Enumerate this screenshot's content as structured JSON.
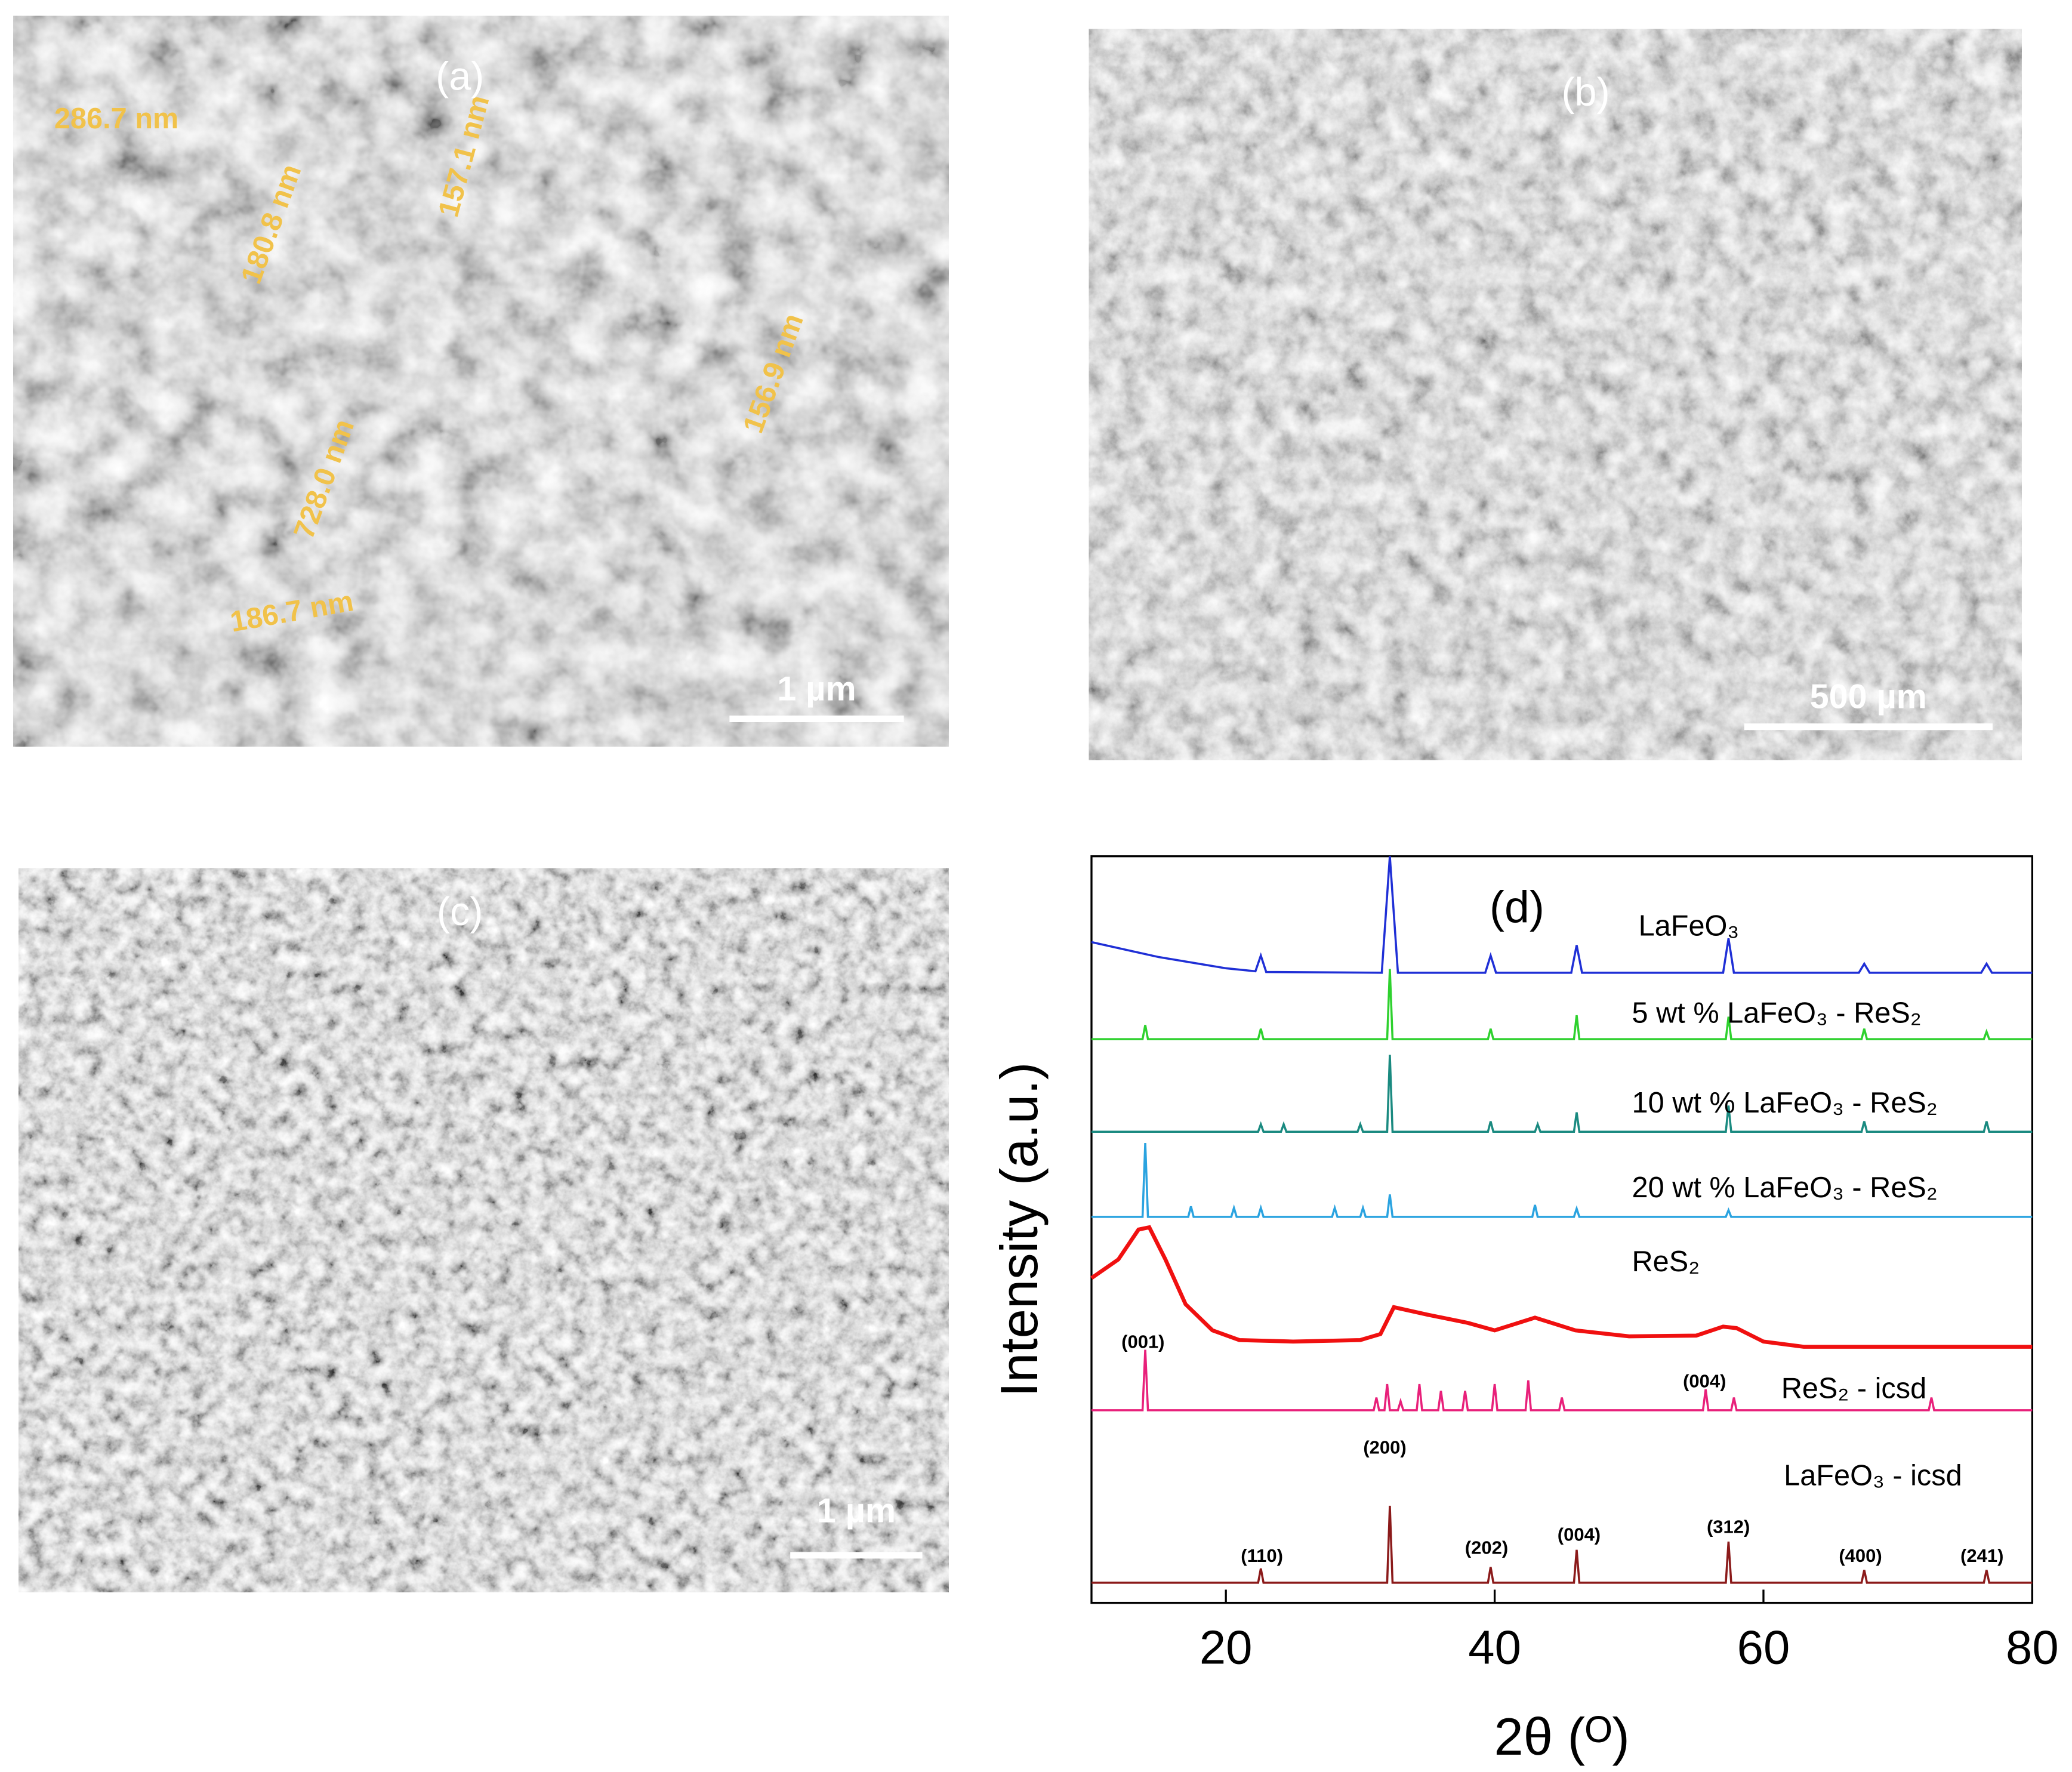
{
  "panels": [
    {
      "label": "(a)",
      "scale_bar": "1 µm",
      "measurements": [
        "286.7 nm",
        "157.1 nm",
        "180.8 nm",
        "156.9 nm",
        "728.0 nm",
        "186.7 nm"
      ]
    },
    {
      "label": "(b)",
      "scale_bar": "500 µm"
    },
    {
      "label": "(c)",
      "scale_bar": "1 µm"
    }
  ],
  "chart_data": {
    "type": "line",
    "panel_label": "(d)",
    "x_label": "2θ (ᴼ)",
    "y_label": "Intensity (a.u.)",
    "xlim": [
      10,
      80
    ],
    "xticks": [
      20,
      40,
      60,
      80
    ],
    "ylim": [
      0,
      100
    ],
    "series": [
      {
        "name": "LaFeO₃",
        "color": "#1f2fd6",
        "x": [
          10,
          15,
          20,
          22.2,
          22.6,
          23,
          31.6,
          32.2,
          32.8,
          39.3,
          39.7,
          40.1,
          45.7,
          46.1,
          46.5,
          57,
          57.4,
          57.8,
          67.1,
          67.5,
          67.9,
          76.2,
          76.6,
          77,
          80
        ],
        "values": [
          88.5,
          86.5,
          85,
          84.6,
          86.7,
          84.5,
          84.4,
          100,
          84.4,
          84.4,
          86.7,
          84.4,
          84.4,
          88.1,
          84.4,
          84.4,
          89,
          84.4,
          84.4,
          85.6,
          84.4,
          84.4,
          85.6,
          84.4,
          84.4
        ]
      },
      {
        "name": "5 wt % LaFeO₃ - ReS₂",
        "color": "#2ed12e",
        "x": [
          10,
          13.8,
          14,
          14.2,
          22.4,
          22.6,
          22.8,
          32,
          32.2,
          32.4,
          39.5,
          39.7,
          39.9,
          45.9,
          46.1,
          46.3,
          57.2,
          57.4,
          57.6,
          67.3,
          67.5,
          67.7,
          76.4,
          76.6,
          76.8,
          80
        ],
        "values": [
          75.5,
          75.5,
          77.4,
          75.5,
          75.5,
          76.9,
          75.5,
          75.5,
          84.9,
          75.5,
          75.5,
          76.9,
          75.5,
          75.5,
          78.7,
          75.5,
          75.5,
          78.5,
          75.5,
          75.5,
          76.9,
          75.5,
          75.5,
          76.5,
          75.5,
          75.5
        ]
      },
      {
        "name": "10 wt % LaFeO₃ - ReS₂",
        "color": "#1a8a80",
        "x": [
          10,
          22.4,
          22.6,
          22.8,
          24.1,
          24.3,
          24.5,
          29.8,
          30,
          30.2,
          32,
          32.2,
          32.4,
          39.5,
          39.7,
          39.9,
          43,
          43.2,
          43.4,
          45.9,
          46.1,
          46.3,
          57.2,
          57.4,
          57.6,
          67.3,
          67.5,
          67.7,
          76.4,
          76.6,
          76.8,
          80
        ],
        "values": [
          63.1,
          63.1,
          64.1,
          63.1,
          63.1,
          64.1,
          63.1,
          63.1,
          64.1,
          63.1,
          63.1,
          73.4,
          63.1,
          63.1,
          64.5,
          63.1,
          63.1,
          64.1,
          63.1,
          63.1,
          65.7,
          63.1,
          63.1,
          66.6,
          63.1,
          63.1,
          64.5,
          63.1,
          63.1,
          64.5,
          63.1,
          63.1
        ]
      },
      {
        "name": "20 wt % LaFeO₃ - ReS₂",
        "color": "#2aa3e0",
        "x": [
          10,
          13.8,
          14,
          14.2,
          17.2,
          17.4,
          17.6,
          20.4,
          20.6,
          20.8,
          22.4,
          22.6,
          22.8,
          27.9,
          28.1,
          28.3,
          30,
          30.2,
          30.4,
          32,
          32.2,
          32.4,
          42.8,
          43,
          43.2,
          45.9,
          46.1,
          46.3,
          57.2,
          57.4,
          57.6,
          80
        ],
        "values": [
          51.7,
          51.7,
          61.6,
          51.7,
          51.7,
          53.1,
          51.7,
          51.7,
          52.9,
          51.7,
          51.7,
          52.9,
          51.7,
          51.7,
          52.9,
          51.7,
          51.7,
          52.9,
          51.7,
          51.7,
          54.7,
          51.7,
          51.7,
          53.3,
          51.7,
          51.7,
          52.8,
          51.7,
          51.7,
          52.6,
          51.7,
          51.7
        ]
      },
      {
        "name": "ReS₂",
        "color": "#f01010",
        "x": [
          10,
          12,
          13.5,
          14.3,
          15.5,
          17,
          19,
          21,
          25,
          30,
          31.5,
          32.5,
          35,
          38,
          40,
          43,
          46,
          50,
          55,
          57,
          58,
          60,
          63,
          70,
          80
        ],
        "values": [
          43.5,
          46,
          50,
          50.3,
          46,
          40,
          36.5,
          35.2,
          35,
          35.2,
          36,
          39.6,
          38.6,
          37.5,
          36.5,
          38.2,
          36.5,
          35.7,
          35.8,
          37,
          36.8,
          35,
          34.3,
          34.3,
          34.3
        ]
      },
      {
        "name": "ReS₂ - icsd",
        "color": "#e8207a",
        "x": [
          10,
          13.8,
          14,
          14.2,
          31,
          31.2,
          31.4,
          31.8,
          32,
          32.2,
          32.8,
          33,
          33.2,
          34.2,
          34.4,
          34.6,
          35.8,
          36,
          36.2,
          37.6,
          37.8,
          38,
          39.8,
          40,
          40.2,
          42.3,
          42.5,
          42.7,
          44.8,
          45,
          45.2,
          55.5,
          55.7,
          55.9,
          57.6,
          57.8,
          58,
          72.3,
          72.5,
          72.7,
          80
        ],
        "values": [
          25.8,
          25.8,
          33.9,
          25.8,
          25.8,
          27.5,
          25.8,
          25.8,
          29.3,
          25.8,
          25.8,
          27,
          25.8,
          25.8,
          29.3,
          25.8,
          25.8,
          28.4,
          25.8,
          25.8,
          28.4,
          25.8,
          25.8,
          29.3,
          25.8,
          25.8,
          29.8,
          25.8,
          25.8,
          27.5,
          25.8,
          25.8,
          28.6,
          25.8,
          25.8,
          27.5,
          25.8,
          25.8,
          27.5,
          25.8,
          25.8
        ]
      },
      {
        "name": "LaFeO₃ - icsd",
        "color": "#8b1a1a",
        "x": [
          10,
          22.4,
          22.6,
          22.8,
          32,
          32.2,
          32.4,
          39.5,
          39.7,
          39.9,
          45.9,
          46.1,
          46.3,
          57.2,
          57.4,
          57.6,
          67.3,
          67.5,
          67.7,
          76.4,
          76.6,
          76.8,
          80
        ],
        "values": [
          2.7,
          2.7,
          4.6,
          2.7,
          2.7,
          13,
          2.7,
          2.7,
          4.8,
          2.7,
          2.7,
          7.1,
          2.7,
          2.7,
          8.2,
          2.7,
          2.7,
          4.4,
          2.7,
          2.7,
          4.4,
          2.7,
          2.7
        ]
      }
    ],
    "annotations": [
      "(001)",
      "(004)",
      "(200)",
      "(110)",
      "(202)",
      "(004)",
      "(312)",
      "(400)",
      "(241)"
    ]
  }
}
